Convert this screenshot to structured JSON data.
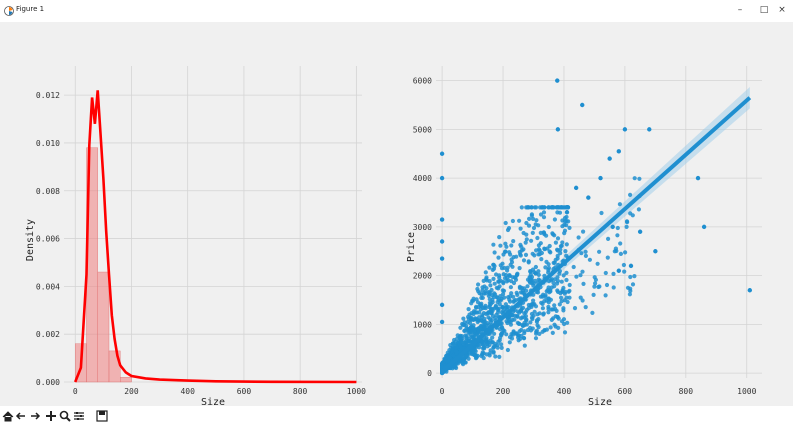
{
  "window": {
    "title": "Figure 1",
    "minimize_glyph": "–",
    "maximize_glyph": "□",
    "close_glyph": "×"
  },
  "toolbar": {
    "buttons": [
      "home-icon",
      "back-icon",
      "forward-icon",
      "pan-icon",
      "zoom-icon",
      "configure-subplots-icon",
      "save-icon"
    ]
  },
  "chart_data": [
    {
      "type": "bar",
      "overlay": "kde-line",
      "xlabel": "Size",
      "ylabel": "Density",
      "xlim": [
        -40,
        1020
      ],
      "ylim": [
        0,
        0.0128
      ],
      "xticks": [
        "0",
        "200",
        "400",
        "600",
        "800",
        "1000"
      ],
      "yticks": [
        "0.000",
        "0.002",
        "0.004",
        "0.006",
        "0.008",
        "0.010",
        "0.012"
      ],
      "grid": true,
      "histogram": {
        "bin_edges": [
          0,
          40,
          80,
          120,
          160,
          200
        ],
        "values": [
          0.0016,
          0.0098,
          0.0046,
          0.0013,
          0.0002
        ]
      },
      "kde": {
        "x": [
          0,
          20,
          40,
          50,
          60,
          70,
          80,
          90,
          100,
          110,
          120,
          130,
          140,
          150,
          160,
          180,
          200,
          250,
          300,
          400,
          500,
          700,
          1000
        ],
        "y": [
          0.0,
          0.0006,
          0.0045,
          0.0099,
          0.0119,
          0.0108,
          0.0122,
          0.0104,
          0.0085,
          0.0063,
          0.0045,
          0.0028,
          0.0018,
          0.0011,
          0.0007,
          0.0004,
          0.00025,
          0.00015,
          0.0001,
          6e-05,
          3e-05,
          1e-05,
          0.0
        ]
      }
    },
    {
      "type": "scatter",
      "overlay": "regression-line",
      "xlabel": "Size",
      "ylabel": "Price",
      "xlim": [
        -20,
        1050
      ],
      "ylim": [
        -100,
        6300
      ],
      "xticks": [
        "0",
        "200",
        "400",
        "600",
        "800",
        "1000"
      ],
      "yticks": [
        "0",
        "1000",
        "2000",
        "3000",
        "4000",
        "5000",
        "6000"
      ],
      "grid": true,
      "regression": {
        "x": [
          0,
          1010
        ],
        "y": [
          30,
          5650
        ]
      },
      "outliers": [
        {
          "x": 378,
          "y": 6000
        },
        {
          "x": 460,
          "y": 5500
        },
        {
          "x": 380,
          "y": 5000
        },
        {
          "x": 600,
          "y": 5000
        },
        {
          "x": 680,
          "y": 5000
        },
        {
          "x": 580,
          "y": 4550
        },
        {
          "x": 520,
          "y": 4000
        },
        {
          "x": 550,
          "y": 4400
        },
        {
          "x": 840,
          "y": 4000
        },
        {
          "x": 860,
          "y": 3000
        },
        {
          "x": 700,
          "y": 2500
        },
        {
          "x": 1010,
          "y": 1700
        },
        {
          "x": 0,
          "y": 4500
        },
        {
          "x": 0,
          "y": 4000
        },
        {
          "x": 0,
          "y": 3150
        },
        {
          "x": 0,
          "y": 2700
        },
        {
          "x": 0,
          "y": 2350
        },
        {
          "x": 0,
          "y": 1400
        },
        {
          "x": 0,
          "y": 1050
        },
        {
          "x": 480,
          "y": 3600
        },
        {
          "x": 440,
          "y": 3800
        },
        {
          "x": 410,
          "y": 3300
        },
        {
          "x": 560,
          "y": 3000
        },
        {
          "x": 650,
          "y": 2900
        },
        {
          "x": 580,
          "y": 2100
        },
        {
          "x": 620,
          "y": 2200
        }
      ]
    }
  ],
  "colors": {
    "scatter": "#1f8fd0",
    "kde": "#ff0000",
    "hist": "#c08090"
  }
}
